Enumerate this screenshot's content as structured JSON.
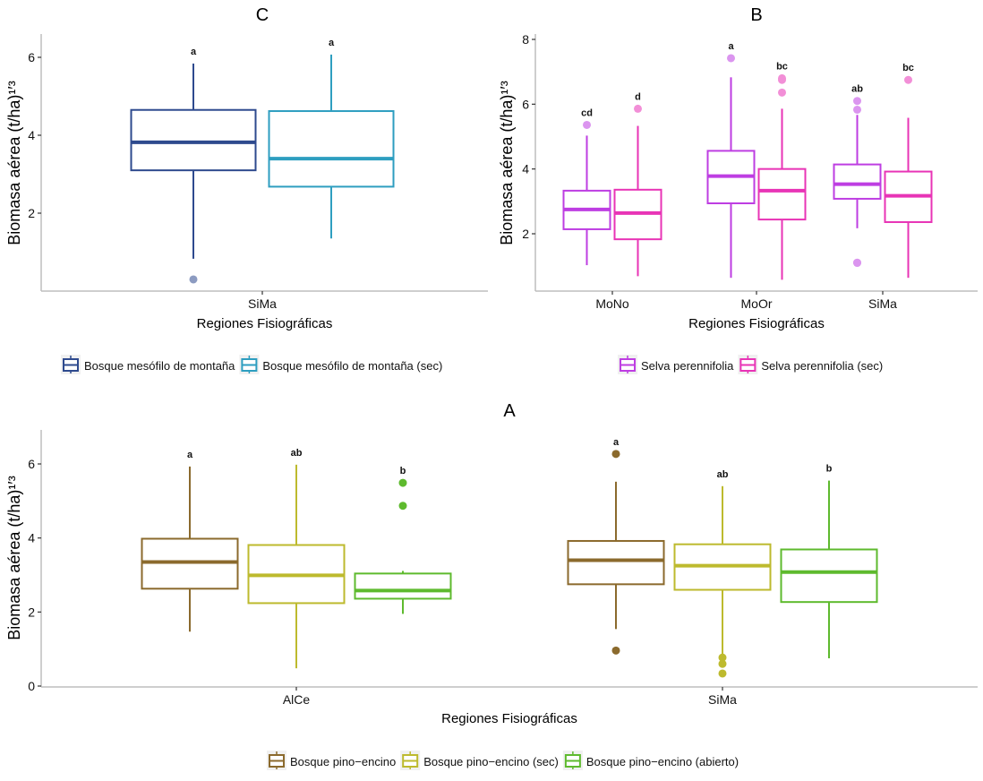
{
  "figure": {
    "panels_order": [
      "C",
      "B",
      "A"
    ]
  },
  "chart_data": [
    {
      "type": "box",
      "panel": "C",
      "title": "C",
      "xlabel": "Regiones Fisiográficas",
      "ylabel": "Biomasa aérea (t/ha)¹′³",
      "ylim": [
        0.0,
        6.6
      ],
      "yticks": [
        2,
        4,
        6
      ],
      "categories": [
        "SiMa"
      ],
      "legend_position": "bottom",
      "series": [
        {
          "name": "Bosque mesófilo de montaña",
          "color": "#2E4A8E",
          "boxes": [
            {
              "category": "SiMa",
              "min": 0.83,
              "q1": 3.1,
              "median": 3.82,
              "q3": 4.65,
              "max": 5.84,
              "outliers": [
                0.3
              ],
              "group_label": "a"
            }
          ]
        },
        {
          "name": "Bosque mesófilo de montaña (sec)",
          "color": "#2E9EC0",
          "boxes": [
            {
              "category": "SiMa",
              "min": 1.35,
              "q1": 2.68,
              "median": 3.4,
              "q3": 4.62,
              "max": 6.07,
              "outliers": [],
              "group_label": "a"
            }
          ]
        }
      ]
    },
    {
      "type": "box",
      "panel": "B",
      "title": "B",
      "xlabel": "Regiones Fisiográficas",
      "ylabel": "Biomasa aérea (t/ha)¹′³",
      "ylim": [
        0.22,
        8.2
      ],
      "yticks": [
        2,
        4,
        6,
        8
      ],
      "categories": [
        "MoNo",
        "MoOr",
        "SiMa"
      ],
      "legend_position": "bottom",
      "series": [
        {
          "name": "Selva perennifolia",
          "color": "#BE3EE2",
          "boxes": [
            {
              "category": "MoNo",
              "min": 1.03,
              "q1": 2.14,
              "median": 2.75,
              "q3": 3.33,
              "max": 5.03,
              "outliers": [
                5.36
              ],
              "group_label": "cd"
            },
            {
              "category": "MoOr",
              "min": 0.64,
              "q1": 2.94,
              "median": 3.78,
              "q3": 4.56,
              "max": 6.83,
              "outliers": [
                7.42
              ],
              "group_label": "a"
            },
            {
              "category": "SiMa",
              "min": 2.17,
              "q1": 3.08,
              "median": 3.53,
              "q3": 4.14,
              "max": 5.67,
              "outliers": [
                6.1,
                5.83,
                1.11,
                1.1
              ],
              "group_label": "ab"
            }
          ]
        },
        {
          "name": "Selva perennifolia (sec)",
          "color": "#E834B6",
          "boxes": [
            {
              "category": "MoNo",
              "min": 0.69,
              "q1": 1.83,
              "median": 2.64,
              "q3": 3.36,
              "max": 5.33,
              "outliers": [
                5.86
              ],
              "group_label": "d"
            },
            {
              "category": "MoOr",
              "min": 0.58,
              "q1": 2.44,
              "median": 3.33,
              "q3": 4.0,
              "max": 5.86,
              "outliers": [
                6.8,
                6.75,
                6.36
              ],
              "group_label": "bc"
            },
            {
              "category": "SiMa",
              "min": 0.64,
              "q1": 2.36,
              "median": 3.17,
              "q3": 3.92,
              "max": 5.58,
              "outliers": [
                6.75
              ],
              "group_label": "bc"
            }
          ]
        }
      ]
    },
    {
      "type": "box",
      "panel": "A",
      "title": "A",
      "xlabel": "Regiones Fisiográficas",
      "ylabel": "Biomasa aérea (t/ha)¹′³",
      "ylim": [
        0,
        6.9
      ],
      "yticks": [
        0,
        2,
        4,
        6
      ],
      "categories": [
        "AlCe",
        "SiMa"
      ],
      "legend_position": "bottom",
      "series": [
        {
          "name": "Bosque pino−encino",
          "color": "#8B6A2D",
          "boxes": [
            {
              "category": "AlCe",
              "min": 1.47,
              "q1": 2.63,
              "median": 3.35,
              "q3": 3.98,
              "max": 5.93,
              "outliers": [],
              "group_label": "a"
            },
            {
              "category": "SiMa",
              "min": 1.54,
              "q1": 2.75,
              "median": 3.4,
              "q3": 3.92,
              "max": 5.52,
              "outliers": [
                6.27,
                0.96
              ],
              "group_label": "a"
            }
          ]
        },
        {
          "name": "Bosque pino−encino (sec)",
          "color": "#BDBA2E",
          "boxes": [
            {
              "category": "AlCe",
              "min": 0.48,
              "q1": 2.24,
              "median": 2.99,
              "q3": 3.81,
              "max": 5.98,
              "outliers": [],
              "group_label": "ab"
            },
            {
              "category": "SiMa",
              "min": 0.77,
              "q1": 2.6,
              "median": 3.25,
              "q3": 3.83,
              "max": 5.4,
              "outliers": [
                0.77,
                0.6,
                0.34
              ],
              "group_label": "ab"
            }
          ]
        },
        {
          "name": "Bosque pino−encino (abierto)",
          "color": "#5EBA2E",
          "boxes": [
            {
              "category": "AlCe",
              "min": 1.95,
              "q1": 2.36,
              "median": 2.58,
              "q3": 3.04,
              "max": 3.11,
              "outliers": [
                5.49,
                4.87
              ],
              "group_label": "b"
            },
            {
              "category": "SiMa",
              "min": 0.75,
              "q1": 2.27,
              "median": 3.08,
              "q3": 3.69,
              "max": 5.55,
              "outliers": [],
              "group_label": "b"
            }
          ]
        }
      ]
    }
  ]
}
